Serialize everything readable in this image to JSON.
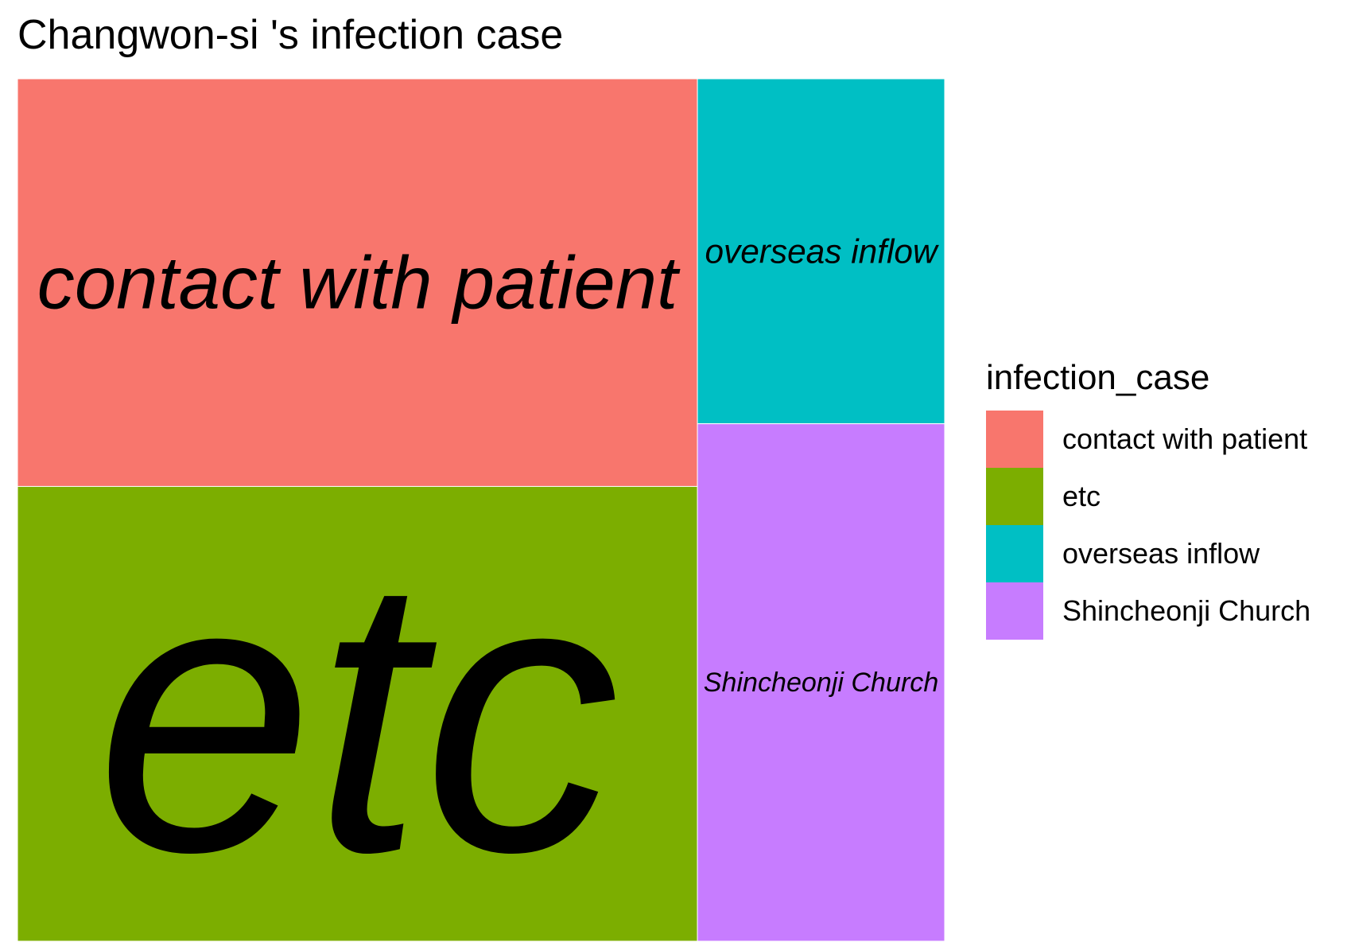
{
  "chart_data": {
    "type": "treemap",
    "title": "Changwon-si 's infection case",
    "legend_title": "infection_case",
    "legend_position": "right",
    "items": [
      {
        "name": "contact with patient",
        "value": 26,
        "color": "#F8766D"
      },
      {
        "name": "etc",
        "value": 29,
        "color": "#7CAE00"
      },
      {
        "name": "overseas inflow",
        "value": 8,
        "color": "#00BFC4"
      },
      {
        "name": "Shincheonji Church",
        "value": 12,
        "color": "#C77CFF"
      }
    ]
  }
}
